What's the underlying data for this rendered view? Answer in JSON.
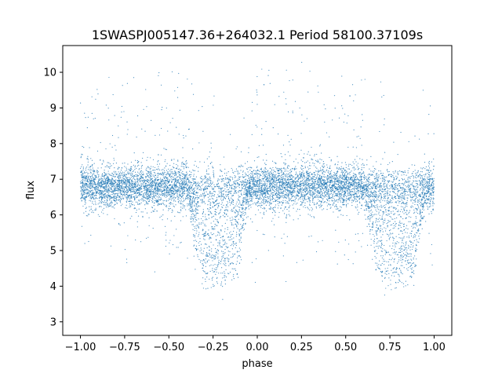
{
  "chart_data": {
    "type": "scatter",
    "title": "1SWASPJ005147.36+264032.1 Period 58100.37109s",
    "xlabel": "phase",
    "ylabel": "flux",
    "xlim": [
      -1.1,
      1.1
    ],
    "ylim": [
      2.62,
      10.75
    ],
    "xticks": [
      -1.0,
      -0.75,
      -0.5,
      -0.25,
      0.0,
      0.25,
      0.5,
      0.75,
      1.0
    ],
    "xtick_labels": [
      "−1.00",
      "−0.75",
      "−0.50",
      "−0.25",
      "0.00",
      "0.25",
      "0.50",
      "0.75",
      "1.00"
    ],
    "yticks": [
      3,
      4,
      5,
      6,
      7,
      8,
      9,
      10
    ],
    "ytick_labels": [
      "3",
      "4",
      "5",
      "6",
      "7",
      "8",
      "9",
      "10"
    ],
    "grid": false,
    "marker_color": "#1f77b4",
    "phase_range": [
      -1.0,
      1.0
    ],
    "baseline_flux": 6.8,
    "eclipse_min_flux": 4.1,
    "eclipse_centers": [
      -0.22,
      0.78
    ],
    "eclipse_width": 0.36
  }
}
